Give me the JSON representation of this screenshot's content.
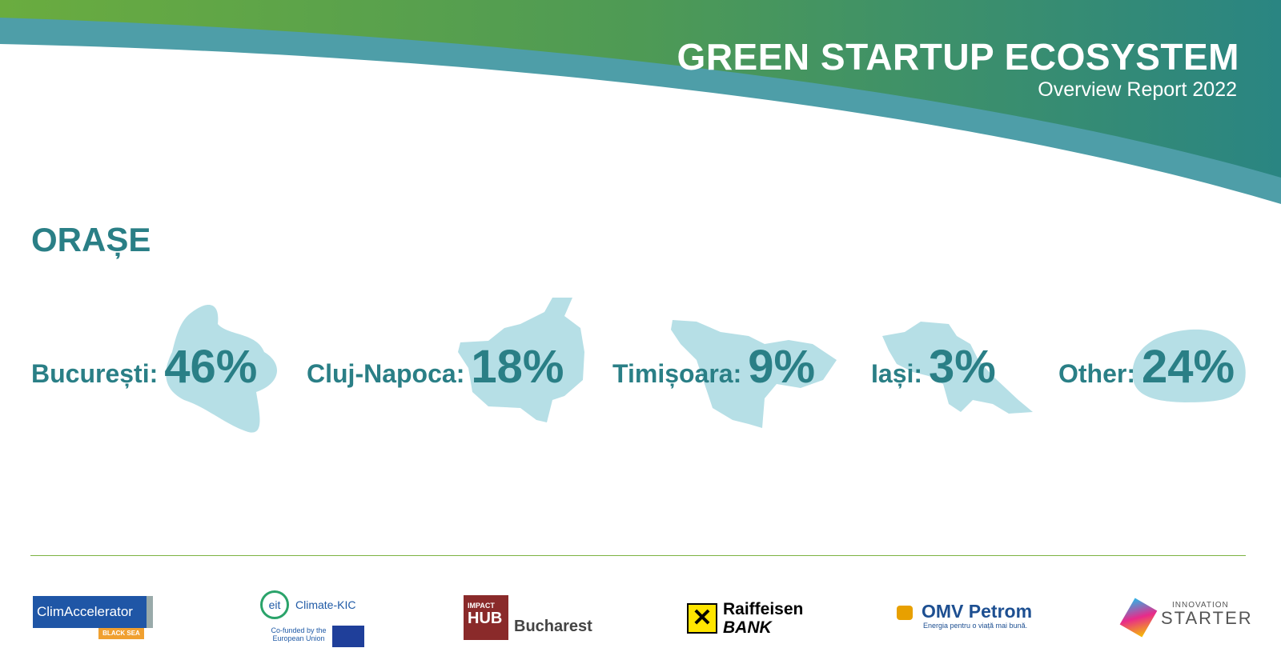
{
  "header": {
    "title": "GREEN STARTUP ECOSYSTEM",
    "subtitle": "Overview Report 2022"
  },
  "section": {
    "title": "ORAȘE"
  },
  "cities": [
    {
      "name": "București:",
      "value": "46%"
    },
    {
      "name": "Cluj-Napoca:",
      "value": "18%"
    },
    {
      "name": "Timișoara:",
      "value": "9%"
    },
    {
      "name": "Iași:",
      "value": "3%"
    },
    {
      "name": "Other:",
      "value": "24%"
    }
  ],
  "logos": {
    "climaccelerator": {
      "name": "ClimAccelerator",
      "tag": "BLACK SEA"
    },
    "climate_kic": {
      "eit": "eit",
      "name": "Climate-KIC",
      "note": "Co-funded by the European Union"
    },
    "impact_hub": {
      "top": "IMPACT",
      "hub": "HUB",
      "city": "Bucharest"
    },
    "raiffeisen": {
      "name": "Raiffeisen",
      "bank": "BANK"
    },
    "omv": {
      "name": "OMV Petrom",
      "tagline": "Energia pentru o viață mai bună."
    },
    "innovation_starter": {
      "top": "INNOVATION",
      "name": "STARTER"
    }
  }
}
